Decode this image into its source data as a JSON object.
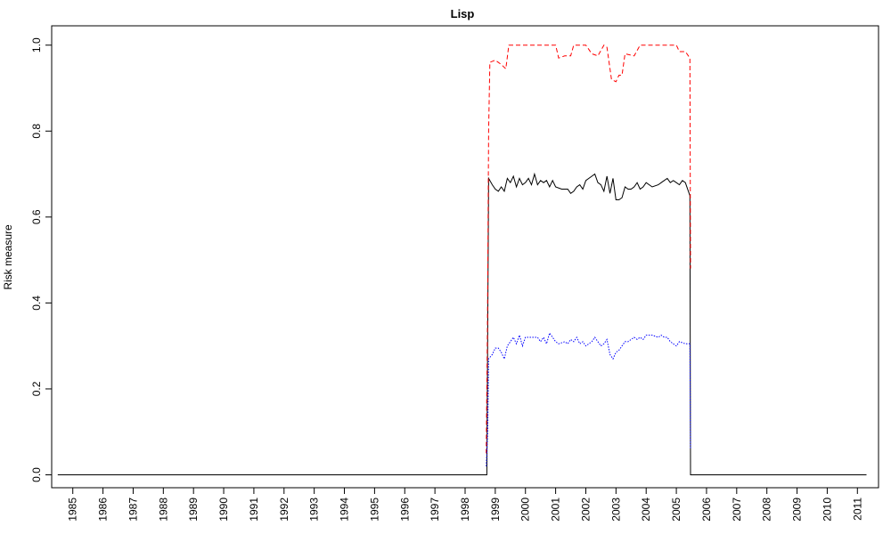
{
  "chart_data": {
    "type": "line",
    "title": "Lisp",
    "xlabel": "",
    "ylabel": "Risk measure",
    "xlim": [
      1984.3,
      2011.7
    ],
    "ylim": [
      -0.03,
      1.045
    ],
    "x_ticks": [
      "1985",
      "1986",
      "1987",
      "1988",
      "1989",
      "1990",
      "1991",
      "1992",
      "1993",
      "1994",
      "1995",
      "1996",
      "1997",
      "1998",
      "1999",
      "2000",
      "2001",
      "2002",
      "2003",
      "2004",
      "2005",
      "2006",
      "2007",
      "2008",
      "2009",
      "2010",
      "2011"
    ],
    "y_ticks": [
      "0.0",
      "0.2",
      "0.4",
      "0.6",
      "0.8",
      "1.0"
    ],
    "grid": false,
    "legend": "none",
    "series": [
      {
        "color": "#000000",
        "dash": "solid",
        "points": [
          [
            1984.5,
            0
          ],
          [
            1998.72,
            0
          ],
          [
            1998.75,
            0.34
          ],
          [
            1998.78,
            0.69
          ],
          [
            1998.9,
            0.675
          ],
          [
            1999.0,
            0.665
          ],
          [
            1999.1,
            0.66
          ],
          [
            1999.2,
            0.67
          ],
          [
            1999.3,
            0.66
          ],
          [
            1999.4,
            0.69
          ],
          [
            1999.5,
            0.68
          ],
          [
            1999.6,
            0.695
          ],
          [
            1999.7,
            0.67
          ],
          [
            1999.8,
            0.69
          ],
          [
            1999.9,
            0.675
          ],
          [
            2000.0,
            0.68
          ],
          [
            2000.1,
            0.69
          ],
          [
            2000.2,
            0.675
          ],
          [
            2000.3,
            0.7
          ],
          [
            2000.4,
            0.675
          ],
          [
            2000.5,
            0.685
          ],
          [
            2000.6,
            0.68
          ],
          [
            2000.7,
            0.685
          ],
          [
            2000.8,
            0.67
          ],
          [
            2000.9,
            0.685
          ],
          [
            2001.0,
            0.67
          ],
          [
            2001.2,
            0.665
          ],
          [
            2001.4,
            0.665
          ],
          [
            2001.5,
            0.655
          ],
          [
            2001.6,
            0.66
          ],
          [
            2001.7,
            0.67
          ],
          [
            2001.8,
            0.675
          ],
          [
            2001.9,
            0.665
          ],
          [
            2002.0,
            0.685
          ],
          [
            2002.2,
            0.695
          ],
          [
            2002.3,
            0.7
          ],
          [
            2002.4,
            0.68
          ],
          [
            2002.5,
            0.675
          ],
          [
            2002.6,
            0.66
          ],
          [
            2002.7,
            0.695
          ],
          [
            2002.8,
            0.655
          ],
          [
            2002.9,
            0.69
          ],
          [
            2003.0,
            0.64
          ],
          [
            2003.1,
            0.64
          ],
          [
            2003.2,
            0.645
          ],
          [
            2003.3,
            0.67
          ],
          [
            2003.4,
            0.665
          ],
          [
            2003.5,
            0.665
          ],
          [
            2003.6,
            0.67
          ],
          [
            2003.7,
            0.68
          ],
          [
            2003.8,
            0.665
          ],
          [
            2003.9,
            0.67
          ],
          [
            2004.0,
            0.68
          ],
          [
            2004.2,
            0.67
          ],
          [
            2004.4,
            0.675
          ],
          [
            2004.5,
            0.68
          ],
          [
            2004.6,
            0.685
          ],
          [
            2004.7,
            0.69
          ],
          [
            2004.8,
            0.68
          ],
          [
            2004.9,
            0.685
          ],
          [
            2005.0,
            0.68
          ],
          [
            2005.1,
            0.675
          ],
          [
            2005.2,
            0.685
          ],
          [
            2005.3,
            0.68
          ],
          [
            2005.4,
            0.66
          ],
          [
            2005.45,
            0.65
          ],
          [
            2005.47,
            0
          ],
          [
            2011.3,
            0
          ]
        ]
      },
      {
        "color": "#ff0000",
        "dash": "dashed",
        "points": [
          [
            1998.7,
            0.05
          ],
          [
            1998.74,
            0.35
          ],
          [
            1998.78,
            0.8
          ],
          [
            1998.82,
            0.96
          ],
          [
            1999.0,
            0.965
          ],
          [
            1999.2,
            0.955
          ],
          [
            1999.35,
            0.945
          ],
          [
            1999.45,
            1.0
          ],
          [
            2001.0,
            1.0
          ],
          [
            2001.1,
            0.97
          ],
          [
            2001.3,
            0.975
          ],
          [
            2001.5,
            0.975
          ],
          [
            2001.6,
            1.0
          ],
          [
            2002.0,
            1.0
          ],
          [
            2002.2,
            0.98
          ],
          [
            2002.4,
            0.975
          ],
          [
            2002.6,
            1.0
          ],
          [
            2002.7,
            0.995
          ],
          [
            2002.85,
            0.92
          ],
          [
            2003.0,
            0.915
          ],
          [
            2003.1,
            0.93
          ],
          [
            2003.2,
            0.93
          ],
          [
            2003.3,
            0.98
          ],
          [
            2003.6,
            0.975
          ],
          [
            2003.8,
            1.0
          ],
          [
            2005.0,
            1.0
          ],
          [
            2005.1,
            0.985
          ],
          [
            2005.3,
            0.985
          ],
          [
            2005.45,
            0.97
          ],
          [
            2005.47,
            0.48
          ]
        ]
      },
      {
        "color": "#0000ff",
        "dash": "dotted",
        "points": [
          [
            1998.7,
            0.02
          ],
          [
            1998.75,
            0.1
          ],
          [
            1998.78,
            0.27
          ],
          [
            1998.9,
            0.28
          ],
          [
            1999.0,
            0.295
          ],
          [
            1999.1,
            0.295
          ],
          [
            1999.2,
            0.285
          ],
          [
            1999.3,
            0.27
          ],
          [
            1999.4,
            0.3
          ],
          [
            1999.5,
            0.31
          ],
          [
            1999.6,
            0.32
          ],
          [
            1999.7,
            0.305
          ],
          [
            1999.8,
            0.325
          ],
          [
            1999.9,
            0.3
          ],
          [
            2000.0,
            0.32
          ],
          [
            2000.2,
            0.32
          ],
          [
            2000.4,
            0.32
          ],
          [
            2000.5,
            0.31
          ],
          [
            2000.6,
            0.32
          ],
          [
            2000.7,
            0.305
          ],
          [
            2000.8,
            0.33
          ],
          [
            2000.9,
            0.32
          ],
          [
            2001.0,
            0.31
          ],
          [
            2001.1,
            0.305
          ],
          [
            2001.3,
            0.31
          ],
          [
            2001.4,
            0.305
          ],
          [
            2001.5,
            0.315
          ],
          [
            2001.6,
            0.31
          ],
          [
            2001.7,
            0.32
          ],
          [
            2001.8,
            0.305
          ],
          [
            2001.9,
            0.31
          ],
          [
            2002.0,
            0.3
          ],
          [
            2002.1,
            0.305
          ],
          [
            2002.2,
            0.31
          ],
          [
            2002.3,
            0.32
          ],
          [
            2002.4,
            0.31
          ],
          [
            2002.5,
            0.3
          ],
          [
            2002.6,
            0.305
          ],
          [
            2002.7,
            0.315
          ],
          [
            2002.8,
            0.28
          ],
          [
            2002.9,
            0.27
          ],
          [
            2003.0,
            0.285
          ],
          [
            2003.1,
            0.29
          ],
          [
            2003.2,
            0.3
          ],
          [
            2003.3,
            0.31
          ],
          [
            2003.4,
            0.31
          ],
          [
            2003.5,
            0.315
          ],
          [
            2003.6,
            0.32
          ],
          [
            2003.7,
            0.315
          ],
          [
            2003.8,
            0.32
          ],
          [
            2003.9,
            0.315
          ],
          [
            2004.0,
            0.325
          ],
          [
            2004.2,
            0.325
          ],
          [
            2004.4,
            0.32
          ],
          [
            2004.5,
            0.325
          ],
          [
            2004.6,
            0.32
          ],
          [
            2004.7,
            0.32
          ],
          [
            2004.8,
            0.31
          ],
          [
            2004.9,
            0.305
          ],
          [
            2005.0,
            0.3
          ],
          [
            2005.1,
            0.31
          ],
          [
            2005.3,
            0.305
          ],
          [
            2005.45,
            0.305
          ],
          [
            2005.47,
            0.06
          ]
        ]
      }
    ]
  }
}
